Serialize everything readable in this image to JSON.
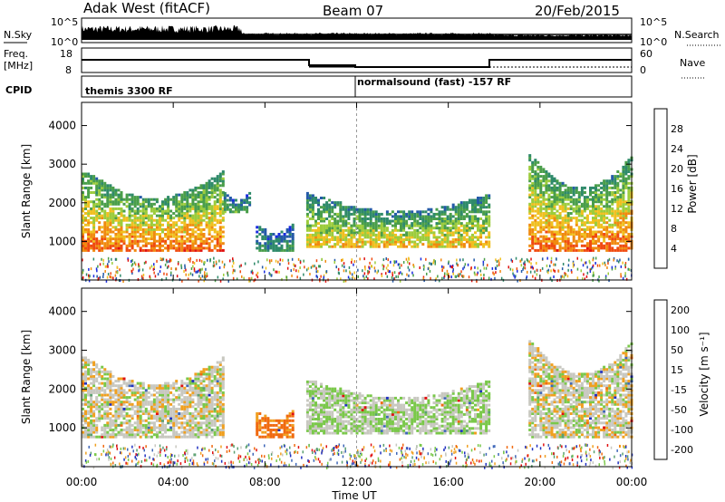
{
  "header": {
    "station": "Adak West (fitACF)",
    "beam": "Beam 07",
    "date": "20/Feb/2015"
  },
  "top_panels": {
    "nsky_label": "N.Sky",
    "nsearch_label": "N.Search",
    "nsky_ticks": [
      "10^5",
      "10^0"
    ],
    "freq_label_1": "Freq.",
    "freq_label_2": "[MHz]",
    "freq_ticks": [
      "18",
      "8"
    ],
    "nave_label": "Nave",
    "nave_ticks": [
      "60",
      "0"
    ],
    "cpid_label": "CPID",
    "cpid_modes": [
      {
        "name": "themis 3300 RF",
        "start_hour": 0
      },
      {
        "name": "normalsound (fast) -157 RF",
        "start_hour": 12
      }
    ]
  },
  "chart_data": [
    {
      "type": "heatmap",
      "name": "power",
      "ylabel": "Slant Range [km]",
      "xlabel": "",
      "x_range_hours": [
        0,
        24
      ],
      "ylim": [
        0,
        4600
      ],
      "yticks": [
        1000,
        2000,
        3000,
        4000
      ],
      "colorbar": {
        "label": "Power [dB]",
        "range": [
          0,
          32
        ],
        "ticks": [
          "4",
          "8",
          "12",
          "16",
          "20",
          "24",
          "28"
        ],
        "colors": [
          "#1a2be0",
          "#245aa8",
          "#2f8a6a",
          "#4a9e4a",
          "#9ccc3c",
          "#f0c020",
          "#f08a10",
          "#f04a10",
          "#e01010"
        ]
      },
      "blobs": [
        {
          "t0": 0.0,
          "t1": 6.2,
          "r0": 800,
          "r1": 2900,
          "mean": 18
        },
        {
          "t0": 6.2,
          "t1": 7.3,
          "r0": 1800,
          "r1": 2300,
          "mean": 8
        },
        {
          "t0": 7.6,
          "t1": 9.2,
          "r0": 800,
          "r1": 1500,
          "mean": 6
        },
        {
          "t0": 9.8,
          "t1": 17.8,
          "r0": 900,
          "r1": 2300,
          "mean": 14
        },
        {
          "t0": 19.5,
          "t1": 24.0,
          "r0": 800,
          "r1": 3300,
          "mean": 18
        }
      ]
    },
    {
      "type": "heatmap",
      "name": "velocity",
      "ylabel": "Slant Range [km]",
      "xlabel": "Time UT",
      "x_range_hours": [
        0,
        24
      ],
      "ylim": [
        0,
        4600
      ],
      "yticks": [
        1000,
        2000,
        3000,
        4000
      ],
      "xticks": [
        "00:00",
        "04:00",
        "08:00",
        "12:00",
        "16:00",
        "20:00",
        "00:00"
      ],
      "colorbar": {
        "label": "Velocity [m s⁻¹]",
        "ticks": [
          "200",
          "100",
          "50",
          "15",
          "-15",
          "-50",
          "-100",
          "-200"
        ],
        "colors": [
          "#2030c0",
          "#3e66b8",
          "#5aa070",
          "#7ac84a",
          "#c8c8c0",
          "#f0a020",
          "#f06a10",
          "#e01010"
        ]
      },
      "blobs": [
        {
          "t0": 0.0,
          "t1": 6.2,
          "r0": 800,
          "r1": 2900,
          "mean": 0
        },
        {
          "t0": 7.6,
          "t1": 9.2,
          "r0": 800,
          "r1": 1500,
          "mean": -50
        },
        {
          "t0": 9.8,
          "t1": 17.8,
          "r0": 900,
          "r1": 2300,
          "mean": 10
        },
        {
          "t0": 19.5,
          "t1": 24.0,
          "r0": 800,
          "r1": 3300,
          "mean": 0
        }
      ]
    }
  ]
}
